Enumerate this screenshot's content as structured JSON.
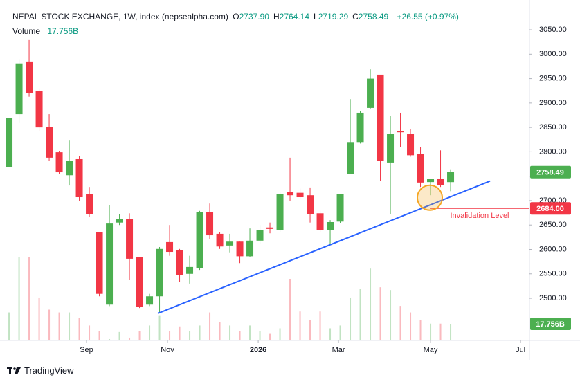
{
  "chart_data": {
    "type": "candlestick",
    "title": "NEPAL STOCK EXCHANGE, 1W, index (nepsealpha.com)",
    "ohlc_legend": [
      {
        "key": "O",
        "text": "2737.90"
      },
      {
        "key": "H",
        "text": "2764.14"
      },
      {
        "key": "L",
        "text": "2719.29"
      },
      {
        "key": "C",
        "text": "2758.49"
      }
    ],
    "change": "+26.55 (+0.97%)",
    "volume_title": "Volume",
    "volume_text": "17.756B",
    "up_color": "#4caf50",
    "down_color": "#f23645",
    "open": [
      2768,
      2877,
      2985,
      2924,
      2851,
      2799,
      2752,
      2785,
      2714,
      2636,
      2487,
      2655,
      2663,
      2584,
      2487,
      2504,
      2615,
      2598,
      2550,
      2562,
      2676,
      2632,
      2608,
      2616,
      2586,
      2618,
      2645,
      2640,
      2718,
      2716,
      2711,
      2674,
      2639,
      2657,
      2755,
      2820,
      2890,
      2958,
      2778,
      2843,
      2837,
      2795,
      2738,
      2745,
      2737.9
    ],
    "high": [
      2870,
      2990,
      3029,
      2930,
      2877,
      2802,
      2823,
      2792,
      2728,
      2636,
      2690,
      2672,
      2674,
      2584,
      2509,
      2605,
      2650,
      2601,
      2587,
      2679,
      2694,
      2636,
      2632,
      2616,
      2643,
      2650,
      2655,
      2717,
      2788,
      2725,
      2727,
      2679,
      2660,
      2714,
      2908,
      2884,
      2969,
      2958,
      2873,
      2880,
      2846,
      2810,
      2745,
      2803,
      2764.14
    ],
    "low": [
      2768,
      2859,
      2913,
      2842,
      2782,
      2754,
      2731,
      2700,
      2667,
      2504,
      2484,
      2650,
      2538,
      2480,
      2484,
      2470,
      2587,
      2533,
      2530,
      2558,
      2622,
      2601,
      2594,
      2572,
      2584,
      2612,
      2633,
      2636,
      2700,
      2704,
      2655,
      2635,
      2612,
      2654,
      2754,
      2817,
      2887,
      2740,
      2672,
      2810,
      2790,
      2728,
      2711,
      2728,
      2719.29
    ],
    "close": [
      2870,
      2981,
      2920,
      2850,
      2788,
      2758,
      2781,
      2707,
      2672,
      2509,
      2653,
      2663,
      2581,
      2483,
      2504,
      2601,
      2595,
      2547,
      2564,
      2676,
      2629,
      2606,
      2616,
      2586,
      2618,
      2640,
      2642,
      2714,
      2711,
      2707,
      2672,
      2640,
      2656,
      2713,
      2820,
      2880,
      2950,
      2781,
      2837,
      2840,
      2793,
      2737,
      2745,
      2732,
      2758.49
    ],
    "volume": [
      30,
      89,
      89,
      46,
      33,
      30,
      30,
      24,
      16,
      10,
      1.5,
      9,
      3,
      10,
      16,
      27,
      10,
      15,
      10,
      16,
      30,
      20,
      16,
      10,
      16,
      10,
      7,
      13,
      66,
      31,
      22,
      31,
      13,
      16,
      46,
      55,
      77,
      57,
      54,
      37,
      30,
      22,
      18,
      18,
      17.756
    ],
    "xlim": [
      -0.9,
      51.86
    ],
    "xticks": [
      {
        "value": 7.72,
        "label": "Sep"
      },
      {
        "value": 15.79,
        "label": "Nov"
      },
      {
        "value": 24.83,
        "label": "2026"
      },
      {
        "value": 32.83,
        "label": "Mar"
      },
      {
        "value": 42,
        "label": "May"
      },
      {
        "value": 50.97,
        "label": "Jul"
      }
    ],
    "ylim": [
      2413.6,
      3111
    ],
    "yticks": [
      {
        "value": 2500,
        "label": "2500.00"
      },
      {
        "value": 2550,
        "label": "2550.00"
      },
      {
        "value": 2600,
        "label": "2600.00"
      },
      {
        "value": 2650,
        "label": "2650.00"
      },
      {
        "value": 2700,
        "label": "2700.00"
      },
      {
        "value": 2750,
        "label": "2750.00"
      },
      {
        "value": 2800,
        "label": "2800.00"
      },
      {
        "value": 2850,
        "label": "2850.00"
      },
      {
        "value": 2900,
        "label": "2900.00"
      },
      {
        "value": 2950,
        "label": "2950.00"
      },
      {
        "value": 3000,
        "label": "3000.00"
      },
      {
        "value": 3050,
        "label": "3050.00"
      }
    ],
    "grid": false,
    "trendline": {
      "x": [
        14.83,
        47.93
      ],
      "y": [
        2469,
        2740
      ],
      "color": "#2962ff"
    },
    "circle_annotation": {
      "x": 41.93,
      "y": 2706,
      "color": "#f5a623"
    },
    "invalidation": {
      "x": 41.93,
      "price": {
        "value": 2684,
        "label": "2684.00"
      },
      "text": "Invalidation Level",
      "color": "#f23645"
    }
  },
  "footer": {
    "brand": "TradingView"
  }
}
